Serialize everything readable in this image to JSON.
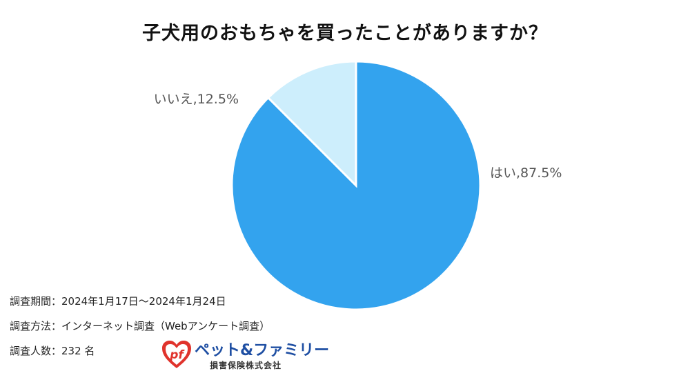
{
  "chart_data": {
    "type": "pie",
    "title": "子犬用のおもちゃを買ったことがありますか？",
    "slices": [
      {
        "label": "はい",
        "value": 87.5,
        "display": "はい,87.5%",
        "color": "#33a3ee"
      },
      {
        "label": "いいえ",
        "value": 12.5,
        "display": "いいえ,12.5%",
        "color": "#cdeefc"
      }
    ],
    "legend": "none"
  },
  "notes": {
    "period": "調査期間：2024年1月17日〜2024年1月24日",
    "method": "調査方法：インターネット調査（Webアンケート調査）",
    "respondents": "調査人数：232 名"
  },
  "logo": {
    "mark_text": "pf",
    "name": "ペット&ファミリー",
    "subtitle": "損害保険株式会社",
    "colors": {
      "mark": "#e0332c",
      "name": "#1f4fa3"
    }
  }
}
